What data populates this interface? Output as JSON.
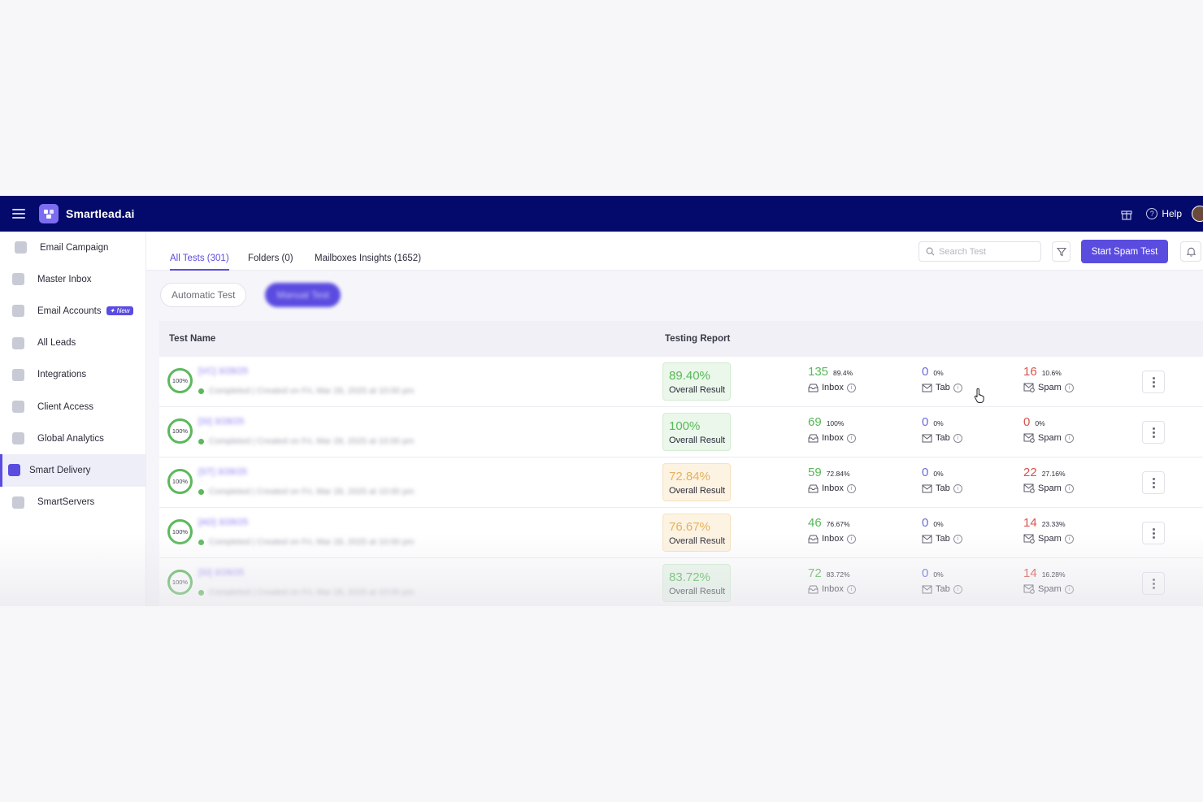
{
  "topbar": {
    "brand": "Smartlead.ai",
    "help_label": "Help"
  },
  "sidebar": {
    "items": [
      {
        "label": "Email Campaign"
      },
      {
        "label": "Master Inbox"
      },
      {
        "label": "Email Accounts",
        "badge": "New"
      },
      {
        "label": "All Leads"
      },
      {
        "label": "Integrations"
      },
      {
        "label": "Client Access"
      },
      {
        "label": "Global Analytics"
      },
      {
        "label": "Smart Delivery",
        "active": true
      },
      {
        "label": "SmartServers"
      }
    ]
  },
  "tabs": [
    {
      "label": "All Tests (301)",
      "active": true
    },
    {
      "label": "Folders (0)"
    },
    {
      "label": "Mailboxes Insights (1652)"
    }
  ],
  "search": {
    "placeholder": "Search Test"
  },
  "start_button": "Start Spam Test",
  "toggle": {
    "automatic": "Automatic Test",
    "manual": "Manual Test"
  },
  "table": {
    "headers": {
      "name": "Test Name",
      "report": "Testing Report"
    },
    "result_label": "Overall Result",
    "inbox_label": "Inbox",
    "tab_label": "Tab",
    "spam_label": "Spam",
    "rows": [
      {
        "progress": "100%",
        "name": "[VC] 3/28/25",
        "sub": "Completed | Created on Fri, Mar 28, 2025 at 10:00 pm",
        "result": "89.40%",
        "inbox": "135",
        "inbox_pct": "89.4%",
        "tab": "0",
        "tab_pct": "0%",
        "spam": "16",
        "spam_pct": "10.6%",
        "tone": "green"
      },
      {
        "progress": "100%",
        "name": "[SI] 3/28/25",
        "sub": "Completed | Created on Fri, Mar 28, 2025 at 10:00 pm",
        "result": "100%",
        "inbox": "69",
        "inbox_pct": "100%",
        "tab": "0",
        "tab_pct": "0%",
        "spam": "0",
        "spam_pct": "0%",
        "tone": "green"
      },
      {
        "progress": "100%",
        "name": "[ST] 3/28/25",
        "sub": "Completed | Created on Fri, Mar 28, 2025 at 10:00 pm",
        "result": "72.84%",
        "inbox": "59",
        "inbox_pct": "72.84%",
        "tab": "0",
        "tab_pct": "0%",
        "spam": "22",
        "spam_pct": "27.16%",
        "tone": "orange"
      },
      {
        "progress": "100%",
        "name": "[AD] 3/28/25",
        "sub": "Completed | Created on Fri, Mar 28, 2025 at 10:00 pm",
        "result": "76.67%",
        "inbox": "46",
        "inbox_pct": "76.67%",
        "tab": "0",
        "tab_pct": "0%",
        "spam": "14",
        "spam_pct": "23.33%",
        "tone": "orange"
      },
      {
        "progress": "100%",
        "name": "[SI] 3/28/25",
        "sub": "Completed | Created on Fri, Mar 28, 2025 at 10:00 pm",
        "result": "83.72%",
        "inbox": "72",
        "inbox_pct": "83.72%",
        "tab": "0",
        "tab_pct": "0%",
        "spam": "14",
        "spam_pct": "16.28%",
        "tone": "green"
      }
    ]
  },
  "colors": {
    "brand_navy": "#040a6b",
    "accent": "#5b4ce0",
    "success": "#58b858",
    "warning": "#e6b15a",
    "danger": "#d9534f"
  }
}
